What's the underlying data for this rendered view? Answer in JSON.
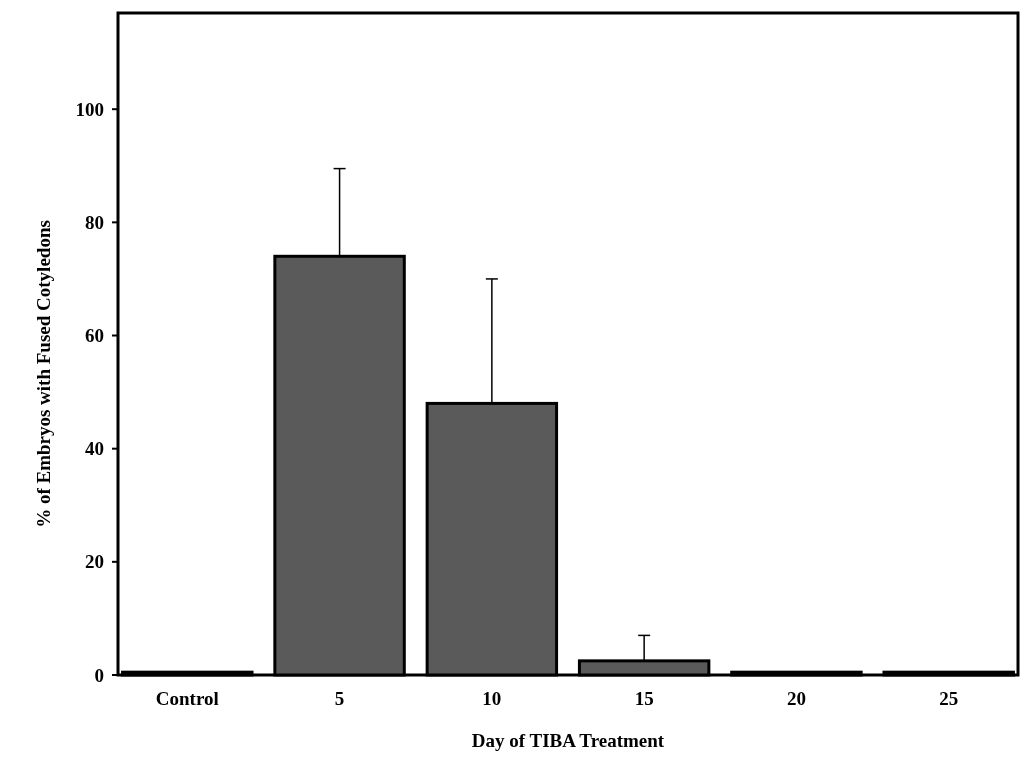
{
  "chart_data": {
    "type": "bar",
    "xlabel": "Day of TIBA Treatment",
    "ylabel": "% of Embryos with Fused Cotyledons",
    "categories": [
      "Control",
      "5",
      "10",
      "15",
      "20",
      "25"
    ],
    "values": [
      0.5,
      74,
      48,
      2.5,
      0.5,
      0.5
    ],
    "errors": [
      null,
      [
        74,
        89.5
      ],
      [
        48,
        70
      ],
      [
        2.5,
        7
      ],
      null,
      null
    ],
    "color": "#5a5a5a",
    "ylim": [
      0,
      117
    ],
    "yticks": [
      0,
      20,
      40,
      60,
      80,
      100
    ],
    "grid": false
  }
}
